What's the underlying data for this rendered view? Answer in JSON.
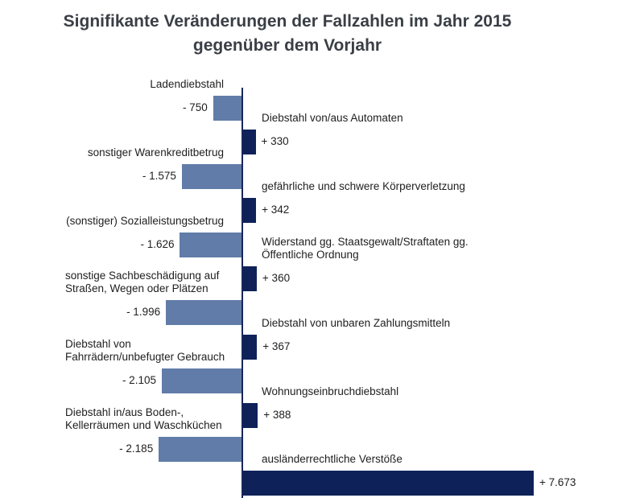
{
  "title": {
    "line1": "Signifikante Veränderungen der Fallzahlen im Jahr 2015",
    "line2": "gegenüber dem Vorjahr"
  },
  "colors": {
    "positive_bar": "#0e2259",
    "negative_bar": "#617ca8",
    "axis": "#16265c",
    "title_text": "#3a3f46",
    "label_text": "#1e1e1e"
  },
  "chart_data": {
    "type": "bar",
    "orientation": "horizontal",
    "title": "Signifikante Veränderungen der Fallzahlen im Jahr 2015 gegenüber dem Vorjahr",
    "value_axis_range": [
      -2500,
      8000
    ],
    "grid": false,
    "legend": false,
    "items": [
      {
        "category": "Ladendiebstahl",
        "value": -750,
        "value_label": "- 750"
      },
      {
        "category": "Diebstahl von/aus Automaten",
        "value": 330,
        "value_label": "+ 330"
      },
      {
        "category": "sonstiger Warenkreditbetrug",
        "value": -1575,
        "value_label": "- 1.575"
      },
      {
        "category": "gefährliche und schwere Körperverletzung",
        "value": 342,
        "value_label": "+ 342"
      },
      {
        "category": "(sonstiger) Sozialleistungsbetrug",
        "value": -1626,
        "value_label": "- 1.626"
      },
      {
        "category": "Widerstand gg. Staatsgewalt/Straftaten gg.\nÖffentliche Ordnung",
        "value": 360,
        "value_label": "+ 360"
      },
      {
        "category": "sonstige Sachbeschädigung auf\nStraßen, Wegen oder Plätzen",
        "value": -1996,
        "value_label": "- 1.996"
      },
      {
        "category": "Diebstahl von unbaren Zahlungsmitteln",
        "value": 367,
        "value_label": "+ 367"
      },
      {
        "category": "Diebstahl von\nFahrrädern/unbefugter Gebrauch",
        "value": -2105,
        "value_label": "- 2.105"
      },
      {
        "category": "Wohnungseinbruchdiebstahl",
        "value": 388,
        "value_label": "+ 388"
      },
      {
        "category": "Diebstahl in/aus Boden-,\nKellerräumen und Waschküchen",
        "value": -2185,
        "value_label": "- 2.185"
      },
      {
        "category": "ausländerrechtliche Verstöße",
        "value": 7673,
        "value_label": "+ 7.673"
      }
    ]
  }
}
